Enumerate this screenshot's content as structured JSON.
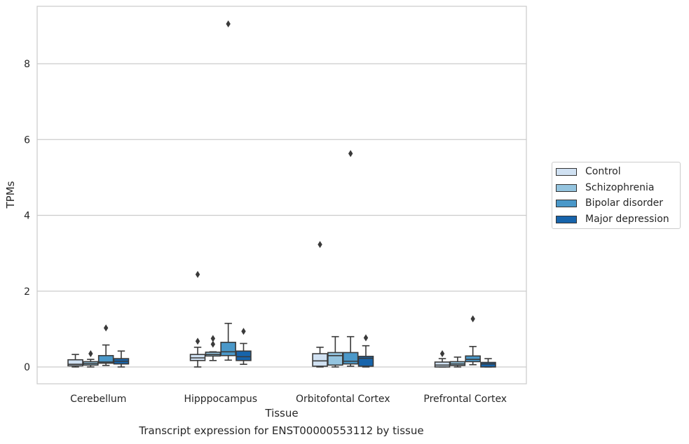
{
  "chart_data": {
    "type": "box",
    "xlabel": "Tissue",
    "ylabel": "TPMs",
    "caption": "Transcript expression for ENST00000553112 by tissue",
    "ylim": [
      -0.45,
      9.6
    ],
    "yticks": [
      0,
      2,
      4,
      6,
      8
    ],
    "grid": "horizontal",
    "legend_position": "right",
    "categories": [
      "Cerebellum",
      "Hipppocampus",
      "Orbitofontal Cortex",
      "Prefrontal Cortex"
    ],
    "series": [
      {
        "name": "Control",
        "color": "#d0e1f2",
        "boxes": [
          {
            "min": 0.0,
            "q1": 0.03,
            "median": 0.07,
            "q3": 0.19,
            "max": 0.33,
            "outliers": []
          },
          {
            "min": 0.0,
            "q1": 0.17,
            "median": 0.24,
            "q3": 0.33,
            "max": 0.52,
            "outliers": [
              0.68,
              2.44
            ]
          },
          {
            "min": 0.0,
            "q1": 0.02,
            "median": 0.16,
            "q3": 0.35,
            "max": 0.52,
            "outliers": [
              3.23
            ]
          },
          {
            "min": 0.0,
            "q1": 0.0,
            "median": 0.05,
            "q3": 0.13,
            "max": 0.22,
            "outliers": [
              0.35
            ]
          }
        ]
      },
      {
        "name": "Schizophrenia",
        "color": "#94c4df",
        "boxes": [
          {
            "min": 0.0,
            "q1": 0.05,
            "median": 0.09,
            "q3": 0.14,
            "max": 0.2,
            "outliers": [
              0.35
            ]
          },
          {
            "min": 0.17,
            "q1": 0.29,
            "median": 0.33,
            "q3": 0.39,
            "max": 0.4,
            "outliers": [
              0.6,
              0.75
            ]
          },
          {
            "min": 0.0,
            "q1": 0.05,
            "median": 0.3,
            "q3": 0.38,
            "max": 0.8,
            "outliers": []
          },
          {
            "min": 0.0,
            "q1": 0.04,
            "median": 0.08,
            "q3": 0.14,
            "max": 0.26,
            "outliers": []
          }
        ]
      },
      {
        "name": "Bipolar disorder",
        "color": "#4a98c9",
        "boxes": [
          {
            "min": 0.04,
            "q1": 0.1,
            "median": 0.13,
            "q3": 0.3,
            "max": 0.58,
            "outliers": [
              1.03
            ]
          },
          {
            "min": 0.18,
            "q1": 0.3,
            "median": 0.4,
            "q3": 0.65,
            "max": 1.15,
            "outliers": [
              9.05
            ]
          },
          {
            "min": 0.02,
            "q1": 0.08,
            "median": 0.15,
            "q3": 0.38,
            "max": 0.8,
            "outliers": [
              5.63
            ]
          },
          {
            "min": 0.06,
            "q1": 0.14,
            "median": 0.2,
            "q3": 0.29,
            "max": 0.54,
            "outliers": [
              1.27
            ]
          }
        ]
      },
      {
        "name": "Major depression",
        "color": "#1764ab",
        "boxes": [
          {
            "min": 0.0,
            "q1": 0.08,
            "median": 0.15,
            "q3": 0.22,
            "max": 0.42,
            "outliers": []
          },
          {
            "min": 0.07,
            "q1": 0.17,
            "median": 0.27,
            "q3": 0.42,
            "max": 0.62,
            "outliers": [
              0.94
            ]
          },
          {
            "min": 0.0,
            "q1": 0.02,
            "median": 0.23,
            "q3": 0.28,
            "max": 0.56,
            "outliers": [
              0.77
            ]
          },
          {
            "min": 0.0,
            "q1": 0.0,
            "median": 0.08,
            "q3": 0.12,
            "max": 0.22,
            "outliers": []
          }
        ]
      }
    ]
  }
}
